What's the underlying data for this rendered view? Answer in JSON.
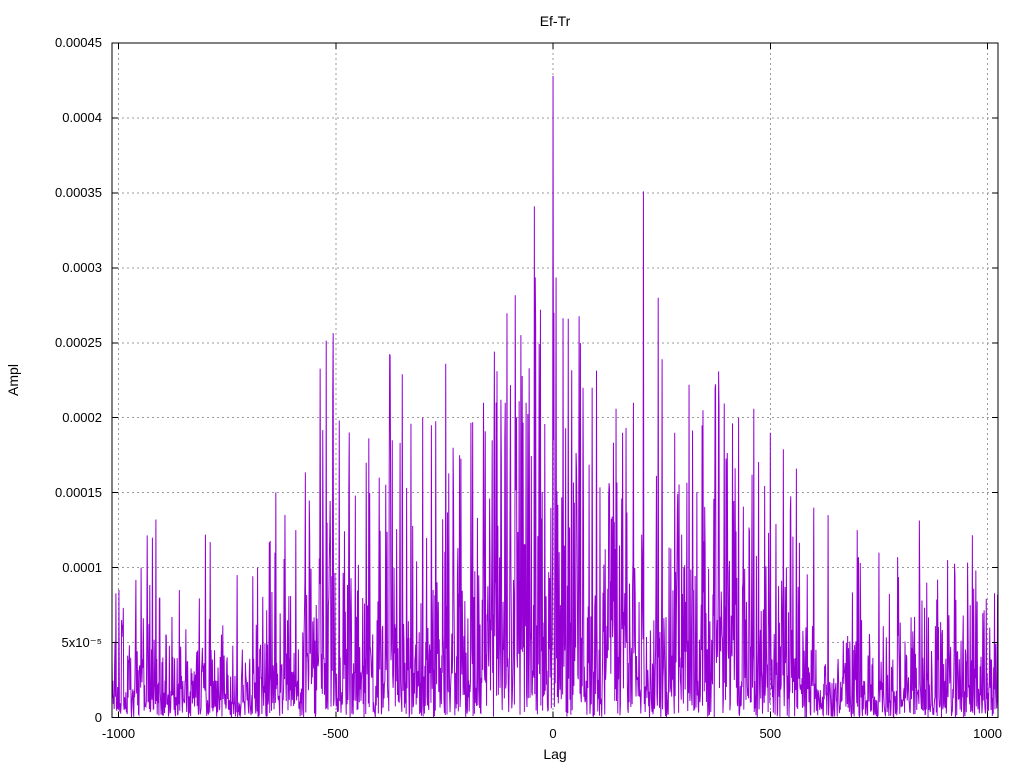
{
  "window": {
    "background_color": "#ffffff",
    "text_color": "#000000"
  },
  "chart_data": {
    "type": "line",
    "title": "Ef-Tr",
    "xlabel": "Lag",
    "ylabel": "Ampl",
    "legend_position": "none",
    "grid": true,
    "line_color": "#9400d3",
    "grid_color": "#9a9a9a",
    "border_color": "#000000",
    "xlim": [
      -1015,
      1024
    ],
    "ylim": [
      0,
      0.00045
    ],
    "xticks": [
      {
        "v": -1000,
        "label": "-1000"
      },
      {
        "v": -500,
        "label": "-500"
      },
      {
        "v": 0,
        "label": "0"
      },
      {
        "v": 500,
        "label": "500"
      },
      {
        "v": 1000,
        "label": "1000"
      }
    ],
    "yticks": [
      {
        "v": 0.0,
        "label": "0"
      },
      {
        "v": 5e-05,
        "label": "5x10⁻⁵"
      },
      {
        "v": 0.0001,
        "label": "0.0001"
      },
      {
        "v": 0.00015,
        "label": "0.00015"
      },
      {
        "v": 0.0002,
        "label": "0.0002"
      },
      {
        "v": 0.00025,
        "label": "0.00025"
      },
      {
        "v": 0.0003,
        "label": "0.0003"
      },
      {
        "v": 0.00035,
        "label": "0.00035"
      },
      {
        "v": 0.0004,
        "label": "0.0004"
      },
      {
        "v": 0.00045,
        "label": "0.00045"
      }
    ],
    "main_peak": {
      "lag": 0,
      "ampl": 0.000428
    },
    "peaks": [
      [
        -993,
        6.5e-05
      ],
      [
        -948,
        0.0001
      ],
      [
        -905,
        8e-05
      ],
      [
        -860,
        8.5e-05
      ],
      [
        -800,
        0.000122
      ],
      [
        -789,
        0.000117
      ],
      [
        -727,
        9.5e-05
      ],
      [
        -680,
        0.0001
      ],
      [
        -640,
        0.00011
      ],
      [
        -592,
        0.000125
      ],
      [
        -560,
        0.00012
      ],
      [
        -520,
        0.00013
      ],
      [
        -470,
        0.000152
      ],
      [
        -455,
        0.000148
      ],
      [
        -430,
        0.00017
      ],
      [
        -400,
        0.00016
      ],
      [
        -370,
        0.000185
      ],
      [
        -347,
        0.000229
      ],
      [
        -327,
        0.000196
      ],
      [
        -300,
        0.0002
      ],
      [
        -280,
        0.000195
      ],
      [
        -247,
        0.000236
      ],
      [
        -230,
        0.00018
      ],
      [
        -215,
        0.000175
      ],
      [
        -185,
        0.000197
      ],
      [
        -160,
        0.00021
      ],
      [
        -140,
        0.000185
      ],
      [
        -120,
        0.000212
      ],
      [
        -110,
        0.00021
      ],
      [
        -85,
        0.00019
      ],
      [
        -62,
        0.00021
      ],
      [
        -55,
        0.000233
      ],
      [
        -30,
        0.000165
      ],
      [
        -1,
        0.000115
      ],
      [
        0,
        0.000428
      ],
      [
        1,
        0.000185
      ],
      [
        2,
        0.00027
      ],
      [
        35,
        0.000266
      ],
      [
        69,
        0.00022
      ],
      [
        90,
        0.00022
      ],
      [
        130,
        0.000152
      ],
      [
        160,
        0.00019
      ],
      [
        185,
        0.00021
      ],
      [
        208,
        0.000351
      ],
      [
        242,
        0.00028
      ],
      [
        251,
        0.000239
      ],
      [
        280,
        0.00019
      ],
      [
        313,
        0.000222
      ],
      [
        345,
        0.000205
      ],
      [
        382,
        0.000207
      ],
      [
        427,
        0.0002
      ],
      [
        462,
        0.000206
      ],
      [
        500,
        0.00019
      ],
      [
        530,
        0.000179
      ],
      [
        560,
        0.000166
      ],
      [
        600,
        0.00014
      ],
      [
        633,
        0.000135
      ],
      [
        700,
        0.000125
      ],
      [
        750,
        0.00011
      ],
      [
        793,
        0.000107
      ],
      [
        860,
        9e-05
      ],
      [
        908,
        0.000105
      ],
      [
        960,
        7.5e-05
      ],
      [
        1005,
        6e-05
      ]
    ],
    "noise_model": {
      "seed": 20,
      "lag_min": -1015,
      "lag_max": 1024,
      "step": 1,
      "base": 2.3e-05,
      "center_amp": 5.6e-05,
      "gauss_width": 500,
      "mean_scale": 0.9,
      "clip_mult": 4.0,
      "mod": [
        [
          0.013,
          2.1,
          0.3
        ],
        [
          0.047,
          0.7,
          0.22
        ]
      ]
    }
  }
}
